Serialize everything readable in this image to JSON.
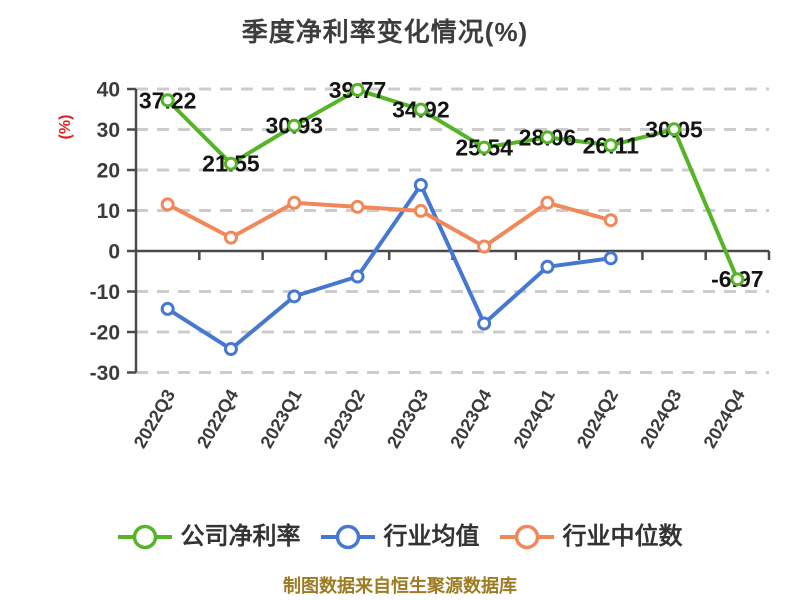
{
  "title": "季度净利率变化情况(%)",
  "footer": "制图数据来自恒生聚源数据库",
  "colors": {
    "background": "#ffffff",
    "title_text": "#3d3d3d",
    "axis_line": "#4a4a4a",
    "axis_label": "#3b3b3b",
    "gridline": "#cccccc",
    "y_axis_name": "#dd2222",
    "data_label": "#141414",
    "legend_text": "#333333",
    "footer_text": "#9d7b22",
    "series_company": "#55b427",
    "series_industry_avg": "#4678d2",
    "series_industry_median": "#f0885a"
  },
  "chart_data": {
    "type": "line",
    "title": "季度净利率变化情况(%)",
    "categories": [
      "2022Q3",
      "2022Q4",
      "2023Q1",
      "2023Q2",
      "2023Q3",
      "2023Q4",
      "2024Q1",
      "2024Q2",
      "2024Q3",
      "2024Q4"
    ],
    "series": [
      {
        "name": "公司净利率",
        "color": "#55b427",
        "show_labels": true,
        "values": [
          37.22,
          21.55,
          30.93,
          39.77,
          34.92,
          25.54,
          28.06,
          26.11,
          30.05,
          -6.97
        ]
      },
      {
        "name": "行业均值",
        "color": "#4678d2",
        "show_labels": false,
        "values": [
          -14.3,
          -24.2,
          -11.2,
          -6.3,
          16.3,
          -17.9,
          -3.9,
          -1.8
        ]
      },
      {
        "name": "行业中位数",
        "color": "#f0885a",
        "show_labels": false,
        "values": [
          11.5,
          3.3,
          11.9,
          10.9,
          9.9,
          1.1,
          11.9,
          7.6
        ]
      }
    ],
    "xlabel": "",
    "ylabel": "(%)",
    "ylim": [
      -30,
      40
    ],
    "yticks": [
      40,
      30,
      20,
      10,
      0,
      -10,
      -20,
      -30
    ],
    "x_label_rotation_deg": 60,
    "grid": "horizontal-dashed",
    "legend_position": "bottom",
    "marker": "white-circle-with-colored-ring"
  }
}
